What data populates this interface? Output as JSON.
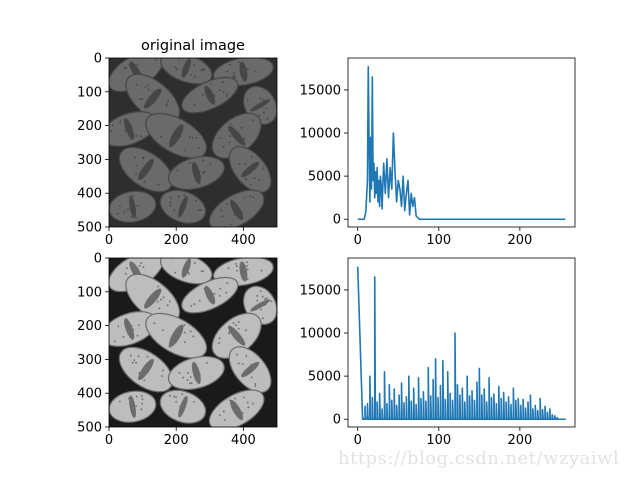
{
  "watermark": "https://blog.csdn.net/wzyaiwl",
  "colors": {
    "line": "#1f77b4",
    "axis": "#000000",
    "background": "#ffffff"
  },
  "chart_data": [
    {
      "type": "image",
      "title": "original image",
      "description_of_content": "low-contrast grayscale micrograph of pollen grains",
      "xlim": [
        0,
        500
      ],
      "ylim": [
        500,
        0
      ],
      "xticks": [
        0,
        200,
        400
      ],
      "yticks": [
        0,
        100,
        200,
        300,
        400,
        500
      ]
    },
    {
      "type": "line",
      "title": "",
      "xlim": [
        -12,
        268
      ],
      "ylim": [
        -900,
        18700
      ],
      "xticks": [
        0,
        100,
        200
      ],
      "yticks": [
        0,
        5000,
        10000,
        15000
      ],
      "series": [
        {
          "x": [
            0,
            8,
            10,
            12,
            13,
            14,
            15,
            16,
            17,
            18,
            19,
            20,
            21,
            22,
            23,
            24,
            25,
            26,
            27,
            28,
            29,
            30,
            32,
            34,
            36,
            38,
            40,
            42,
            44,
            46,
            48,
            50,
            52,
            54,
            56,
            58,
            60,
            62,
            64,
            66,
            68,
            70,
            72,
            74,
            76,
            78,
            80,
            256
          ],
          "y": [
            0,
            0,
            900,
            4500,
            17700,
            9000,
            2000,
            9500,
            3500,
            16500,
            4500,
            6500,
            2500,
            5500,
            3000,
            6000,
            2000,
            4500,
            1500,
            5000,
            4000,
            1200,
            6500,
            3000,
            7000,
            2500,
            6000,
            3500,
            10000,
            5500,
            2000,
            4500,
            3500,
            1500,
            5000,
            1000,
            3000,
            4500,
            500,
            3000,
            1500,
            2500,
            400,
            200,
            0,
            0,
            0,
            0
          ]
        }
      ]
    },
    {
      "type": "image",
      "title": "",
      "description_of_content": "histogram-equalized grayscale micrograph of pollen grains",
      "xlim": [
        0,
        500
      ],
      "ylim": [
        500,
        0
      ],
      "xticks": [
        0,
        200,
        400
      ],
      "yticks": [
        0,
        100,
        200,
        300,
        400,
        500
      ]
    },
    {
      "type": "line",
      "title": "",
      "xlim": [
        -12,
        268
      ],
      "ylim": [
        -900,
        18700
      ],
      "xticks": [
        0,
        100,
        200
      ],
      "yticks": [
        0,
        5000,
        10000,
        15000
      ],
      "series": [
        {
          "spikes": [
            [
              0,
              17700
            ],
            [
              6,
              300
            ],
            [
              9,
              1500
            ],
            [
              12,
              1800
            ],
            [
              15,
              5000
            ],
            [
              18,
              2500
            ],
            [
              21,
              16500
            ],
            [
              24,
              2000
            ],
            [
              27,
              3000
            ],
            [
              30,
              1200
            ],
            [
              33,
              5500
            ],
            [
              36,
              1800
            ],
            [
              39,
              4000
            ],
            [
              42,
              2200
            ],
            [
              45,
              3500
            ],
            [
              48,
              1600
            ],
            [
              51,
              2800
            ],
            [
              54,
              4200
            ],
            [
              57,
              1900
            ],
            [
              60,
              2600
            ],
            [
              63,
              5000
            ],
            [
              66,
              2100
            ],
            [
              69,
              3600
            ],
            [
              72,
              1700
            ],
            [
              75,
              4800
            ],
            [
              78,
              2400
            ],
            [
              81,
              3200
            ],
            [
              84,
              2100
            ],
            [
              87,
              6000
            ],
            [
              90,
              2700
            ],
            [
              93,
              4600
            ],
            [
              96,
              7000
            ],
            [
              99,
              2500
            ],
            [
              102,
              3900
            ],
            [
              105,
              6800
            ],
            [
              108,
              2300
            ],
            [
              111,
              5500
            ],
            [
              114,
              3000
            ],
            [
              117,
              2200
            ],
            [
              120,
              10000
            ],
            [
              123,
              4000
            ],
            [
              126,
              2800
            ],
            [
              129,
              3600
            ],
            [
              132,
              2000
            ],
            [
              135,
              5000
            ],
            [
              138,
              2700
            ],
            [
              141,
              3300
            ],
            [
              144,
              2200
            ],
            [
              147,
              4300
            ],
            [
              150,
              5900
            ],
            [
              153,
              2800
            ],
            [
              156,
              3500
            ],
            [
              159,
              2000
            ],
            [
              162,
              4800
            ],
            [
              165,
              2500
            ],
            [
              168,
              2900
            ],
            [
              171,
              1800
            ],
            [
              174,
              3800
            ],
            [
              177,
              2400
            ],
            [
              180,
              3100
            ],
            [
              183,
              2000
            ],
            [
              186,
              2600
            ],
            [
              189,
              1700
            ],
            [
              192,
              3600
            ],
            [
              195,
              2200
            ],
            [
              198,
              2400
            ],
            [
              201,
              1600
            ],
            [
              204,
              2300
            ],
            [
              207,
              1300
            ],
            [
              210,
              2000
            ],
            [
              213,
              2800
            ],
            [
              216,
              1200
            ],
            [
              219,
              1600
            ],
            [
              222,
              1000
            ],
            [
              225,
              2400
            ],
            [
              228,
              1100
            ],
            [
              231,
              1500
            ],
            [
              234,
              800
            ],
            [
              237,
              1200
            ],
            [
              240,
              500
            ],
            [
              243,
              400
            ],
            [
              246,
              200
            ],
            [
              250,
              0
            ],
            [
              256,
              0
            ]
          ]
        }
      ]
    }
  ]
}
